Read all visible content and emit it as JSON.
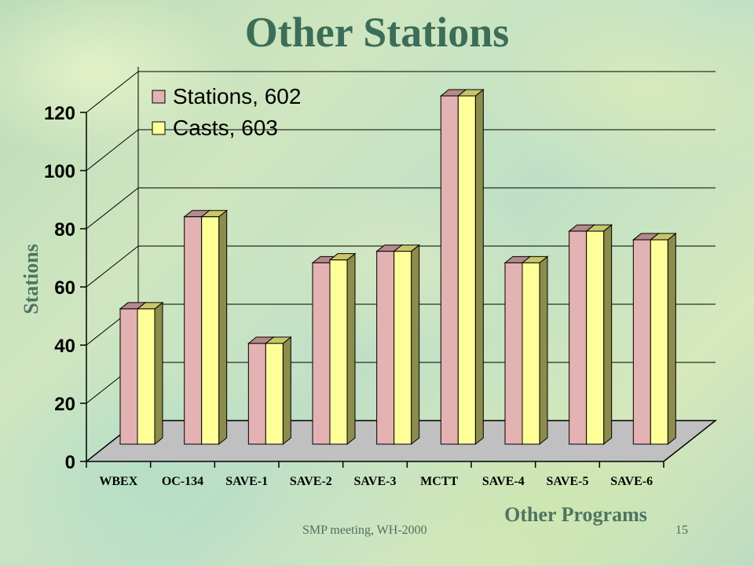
{
  "slide": {
    "title": "Other Stations",
    "footer_text": "SMP meeting, WH-2000",
    "page_number": "15"
  },
  "colors": {
    "title": "#3c6d58",
    "axis_label": "#4f7560",
    "series1_front": "#e3b2b2",
    "series1_side": "#8f6e6e",
    "series1_top": "#b58a8a",
    "series2_front": "#ffff99",
    "series2_side": "#8c8c4c",
    "series2_top": "#c7c76a",
    "floor": "#c0c0c0",
    "gridline": "#000000"
  },
  "chart_data": {
    "type": "bar",
    "title": "",
    "xlabel": "Other Programs",
    "ylabel": "Stations",
    "ylim": [
      0,
      120
    ],
    "yticks": [
      0,
      20,
      40,
      60,
      80,
      100,
      120
    ],
    "grid": true,
    "legend_position": "top-left",
    "categories": [
      "WBEX",
      "OC-134",
      "SAVE-1",
      "SAVE-2",
      "SAVE-3",
      "MCTT",
      "SAVE-4",
      "SAVE-5",
      "SAVE-6"
    ],
    "series": [
      {
        "name": "Stations, 602",
        "values": [
          47,
          79,
          35,
          63,
          67,
          121,
          63,
          74,
          71
        ]
      },
      {
        "name": "Casts, 603",
        "values": [
          47,
          79,
          35,
          64,
          67,
          121,
          63,
          74,
          71
        ]
      }
    ]
  }
}
